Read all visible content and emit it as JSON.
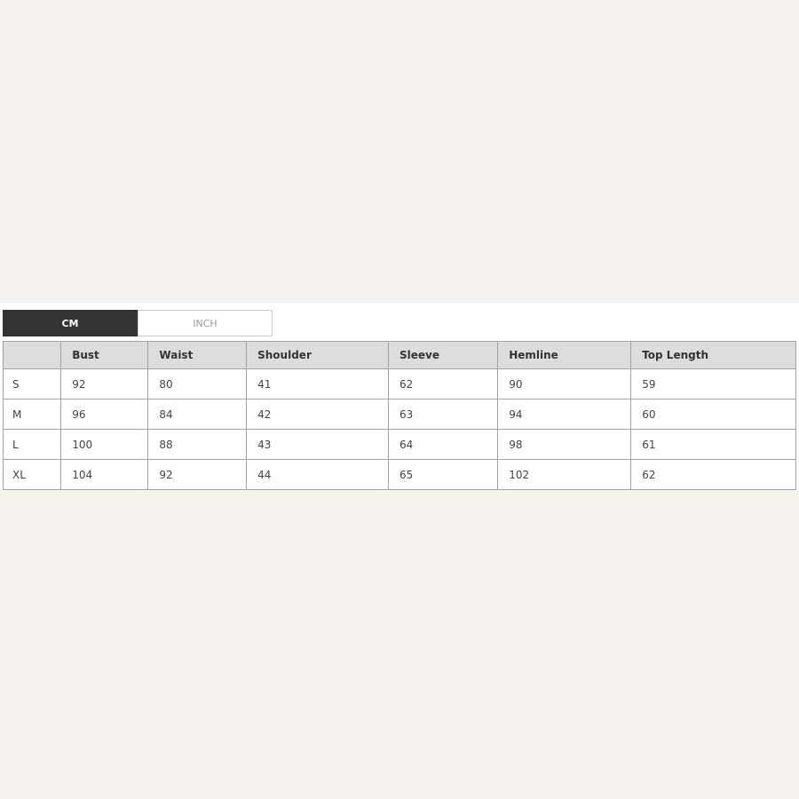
{
  "page": {
    "background_color": "#f5f1ec",
    "panel_color": "#ffffff"
  },
  "unit_tabs": {
    "cm": {
      "label": "CM",
      "active": true,
      "bg_color": "#333333",
      "text_color": "#ffffff"
    },
    "inch": {
      "label": "INCH",
      "active": false,
      "bg_color": "#ffffff",
      "text_color": "#999999",
      "border_color": "#cccccc"
    }
  },
  "size_chart": {
    "unit": "CM",
    "header_bg_color": "#dddddd",
    "border_color": "#a3a3a3",
    "columns": [
      "",
      "Bust",
      "Waist",
      "Shoulder",
      "Sleeve",
      "Hemline",
      "Top Length"
    ],
    "rows": [
      {
        "size": "S",
        "values": [
          92,
          80,
          41,
          62,
          90,
          59
        ]
      },
      {
        "size": "M",
        "values": [
          96,
          84,
          42,
          63,
          94,
          60
        ]
      },
      {
        "size": "L",
        "values": [
          100,
          88,
          43,
          64,
          98,
          61
        ]
      },
      {
        "size": "XL",
        "values": [
          104,
          92,
          44,
          65,
          102,
          62
        ]
      }
    ]
  }
}
